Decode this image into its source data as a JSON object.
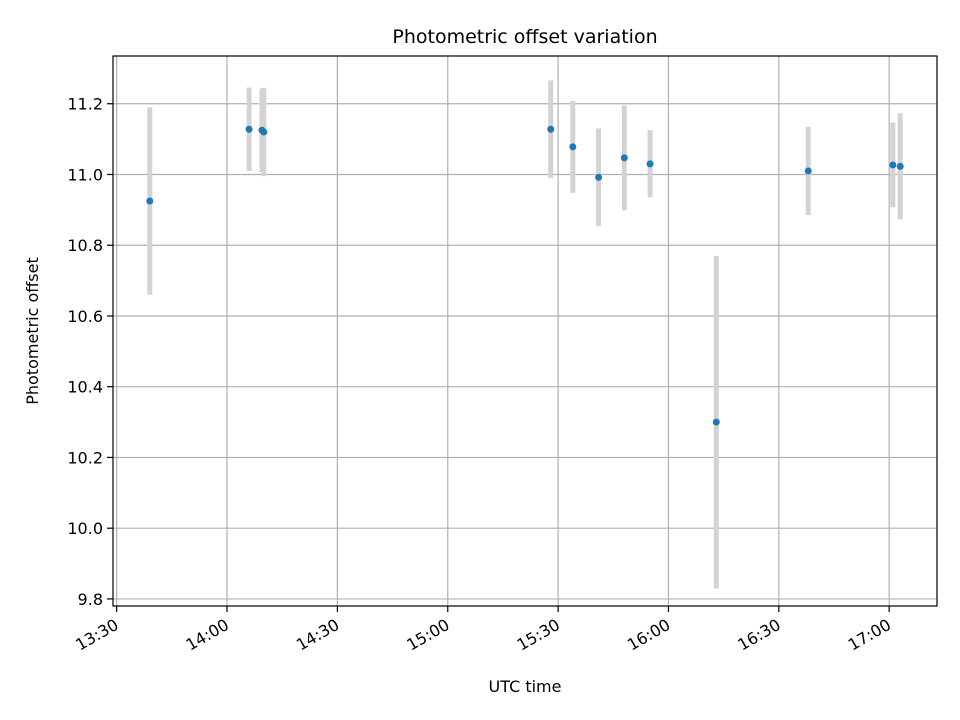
{
  "chart_data": {
    "type": "scatter",
    "title": "Photometric offset variation",
    "xlabel": "UTC time",
    "ylabel": "Photometric offset",
    "xlim": [
      "13:29",
      "17:13"
    ],
    "ylim": [
      9.78,
      11.335
    ],
    "grid": true,
    "colors": {
      "point": "#1f77b4",
      "errorbar": "#d3d3d3",
      "grid": "#b0b0b0"
    },
    "x_ticks": [
      "13:30",
      "14:00",
      "14:30",
      "15:00",
      "15:30",
      "16:00",
      "16:30",
      "17:00"
    ],
    "y_ticks": [
      "9.8",
      "10.0",
      "10.2",
      "10.4",
      "10.6",
      "10.8",
      "11.0",
      "11.2"
    ],
    "points": [
      {
        "time": "13:39",
        "y": 10.925,
        "err": 0.265
      },
      {
        "time": "14:06",
        "y": 11.128,
        "err": 0.118
      },
      {
        "time": "14:09:30",
        "y": 11.125,
        "err": 0.118
      },
      {
        "time": "14:10",
        "y": 11.12,
        "err": 0.125
      },
      {
        "time": "15:28",
        "y": 11.128,
        "err": 0.138
      },
      {
        "time": "15:34",
        "y": 11.078,
        "err": 0.13
      },
      {
        "time": "15:41",
        "y": 10.992,
        "err": 0.138
      },
      {
        "time": "15:48",
        "y": 11.047,
        "err": 0.148
      },
      {
        "time": "15:55",
        "y": 11.03,
        "err": 0.095
      },
      {
        "time": "16:13",
        "y": 10.3,
        "err": 0.47
      },
      {
        "time": "16:38",
        "y": 11.01,
        "err": 0.125
      },
      {
        "time": "17:01",
        "y": 11.027,
        "err": 0.12
      },
      {
        "time": "17:03",
        "y": 11.023,
        "err": 0.15
      }
    ]
  }
}
